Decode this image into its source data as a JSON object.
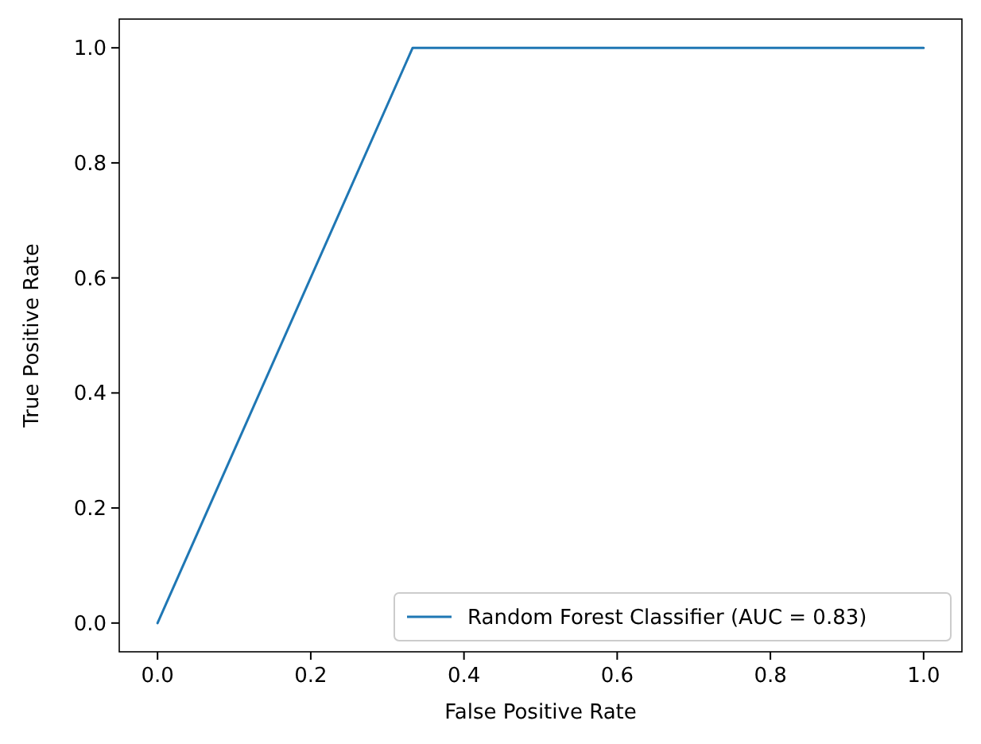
{
  "chart_data": {
    "type": "line",
    "xlabel": "False Positive Rate",
    "ylabel": "True Positive Rate",
    "x": [
      0,
      0.333,
      1
    ],
    "series": [
      {
        "name": "Random Forest Classifier (AUC = 0.83)",
        "color": "#1f77b4",
        "values": [
          0,
          1,
          1
        ]
      }
    ],
    "xlim": [
      -0.05,
      1.05
    ],
    "ylim": [
      -0.05,
      1.05
    ],
    "xticks": [
      {
        "value": 0,
        "label": "0.0"
      },
      {
        "value": 0.2,
        "label": "0.2"
      },
      {
        "value": 0.4,
        "label": "0.4"
      },
      {
        "value": 0.6,
        "label": "0.6"
      },
      {
        "value": 0.8,
        "label": "0.8"
      },
      {
        "value": 1,
        "label": "1.0"
      }
    ],
    "yticks": [
      {
        "value": 0,
        "label": "0.0"
      },
      {
        "value": 0.2,
        "label": "0.2"
      },
      {
        "value": 0.4,
        "label": "0.4"
      },
      {
        "value": 0.6,
        "label": "0.6"
      },
      {
        "value": 0.8,
        "label": "0.8"
      },
      {
        "value": 1,
        "label": "1.0"
      }
    ],
    "legend": "bottom right",
    "grid": false
  }
}
